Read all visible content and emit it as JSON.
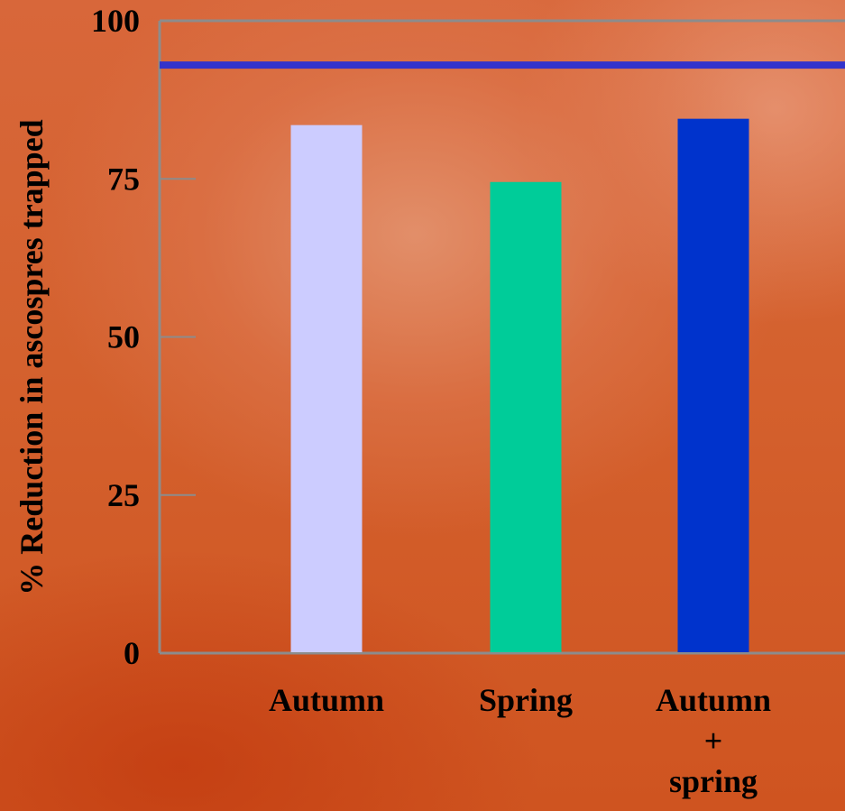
{
  "chart_data": {
    "type": "bar",
    "categories": [
      [
        "Autumn"
      ],
      [
        "Spring"
      ],
      [
        "Autumn",
        "+",
        "spring"
      ]
    ],
    "values": [
      83.5,
      74.5,
      84.5
    ],
    "bar_colors": [
      "#ccccff",
      "#00cc99",
      "#0033cc"
    ],
    "ylabel": "% Reduction in ascospres trapped",
    "xlabel": "",
    "ylim": [
      0,
      100
    ],
    "yticks": [
      0,
      25,
      50,
      75,
      100
    ],
    "reference_line": {
      "value": 93,
      "color": "#3333cc"
    },
    "axis_color": "#8c8c8c",
    "grid": false,
    "legend": "none"
  }
}
